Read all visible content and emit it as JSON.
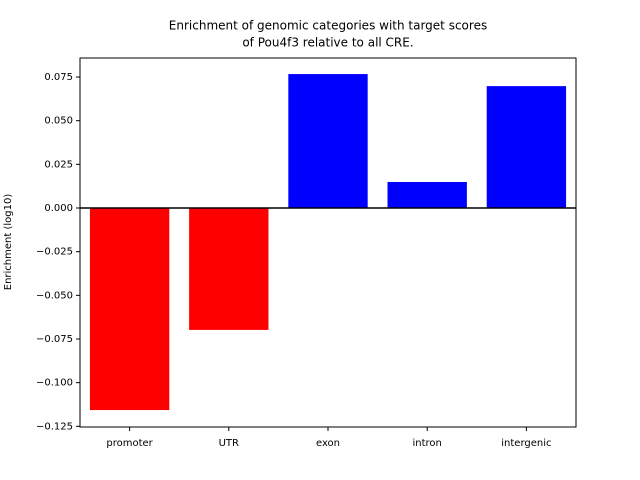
{
  "chart_data": {
    "type": "bar",
    "title": [
      "Enrichment of genomic categories with target scores",
      "of Pou4f3 relative to all CRE."
    ],
    "y_label": "Enrichment (log10)",
    "categories": [
      "promoter",
      "UTR",
      "exon",
      "intron",
      "intergenic"
    ],
    "values": [
      -0.1157,
      -0.0698,
      0.0767,
      0.0149,
      0.0698
    ],
    "colors": [
      "#ff0000",
      "#ff0000",
      "#0000ff",
      "#0000ff",
      "#0000ff"
    ],
    "ylim": [
      -0.1254,
      0.0859
    ],
    "yticks": [
      {
        "value": -0.125,
        "label": "−0.125"
      },
      {
        "value": -0.1,
        "label": "−0.100"
      },
      {
        "value": -0.075,
        "label": "−0.075"
      },
      {
        "value": -0.05,
        "label": "−0.050"
      },
      {
        "value": -0.025,
        "label": "−0.025"
      },
      {
        "value": 0,
        "label": "0.000"
      },
      {
        "value": 0.025,
        "label": "0.025"
      },
      {
        "value": 0.05,
        "label": "0.050"
      },
      {
        "value": 0.075,
        "label": "0.075"
      }
    ],
    "axhline": 0,
    "grid": false
  }
}
